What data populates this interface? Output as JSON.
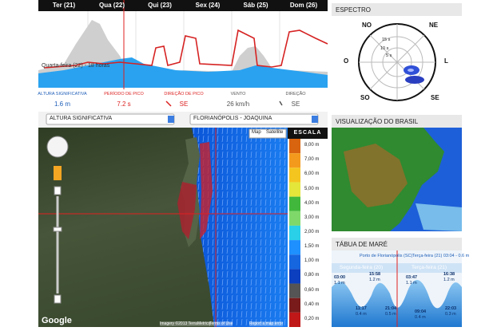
{
  "forecast": {
    "days": [
      "Ter (21)",
      "Qua (22)",
      "Qui (23)",
      "Sex (24)",
      "Sáb (25)",
      "Dom (26)"
    ],
    "cursor_label": "Quarta-feira (22) - 18 horas",
    "readouts": [
      {
        "label": "ALTURA SIGNIFICATIVA",
        "value": "1.6 m"
      },
      {
        "label": "PERÍODO DE PICO",
        "value": "7.2 s"
      },
      {
        "label": "DIREÇÃO DE PICO",
        "value": "SE"
      },
      {
        "label": "VENTO",
        "value": "26 km/h"
      },
      {
        "label": "DIREÇÃO",
        "value": "SE"
      }
    ]
  },
  "map": {
    "layer_select": "ALTURA SIGNIFICATIVA",
    "location_select": "FLORIANÓPOLIS - JOAQUINA",
    "map_button": "Map",
    "satellite_button": "Satellite",
    "logo": "Google",
    "attribution": [
      "Imagery ©2013 TerraMetrics",
      "Terms of Use",
      "Report a map error"
    ]
  },
  "scale": {
    "title": "ESCALA",
    "labels": [
      "8,00 m",
      "7,00 m",
      "6,00 m",
      "5,00 m",
      "4,00 m",
      "3,00 m",
      "2,00 m",
      "1,50 m",
      "1,00 m",
      "0,80 m",
      "0,60 m",
      "0,40 m",
      "0,20 m"
    ],
    "colors": [
      "#d9640f",
      "#f39a1c",
      "#f5c51f",
      "#e4e63a",
      "#41b83b",
      "#7fd96a",
      "#2ad0e8",
      "#1e90ff",
      "#1666e0",
      "#0b3fbf",
      "#555555",
      "#7a1b1b",
      "#c01818"
    ]
  },
  "spectrum": {
    "title": "ESPECTRO",
    "directions": [
      "NO",
      "NE",
      "O",
      "L",
      "SO",
      "SE"
    ],
    "rings": [
      "15 s",
      "10 s",
      "5 s"
    ]
  },
  "brazil": {
    "title": "VISUALIZAÇÃO DO BRASIL"
  },
  "tide": {
    "title": "TÁBUA DE MARÉ",
    "port": "Porto de Florianópolis (SC)",
    "selected": "Terça-feira (21) 03:04 - 0.6 m",
    "days": [
      "Segunda-feira (20)",
      "Terça-feira (21)"
    ],
    "events": [
      {
        "time": "03:00",
        "height": "1.1 m"
      },
      {
        "time": "11:17",
        "height": "0.4 m"
      },
      {
        "time": "15:58",
        "height": "1.2 m"
      },
      {
        "time": "21:04",
        "height": "0.5 m"
      },
      {
        "time": "03:47",
        "height": "1.1 m"
      },
      {
        "time": "09:04",
        "height": "0.4 m"
      },
      {
        "time": "16:38",
        "height": "1.2 m"
      },
      {
        "time": "22:03",
        "height": "0.3 m"
      }
    ]
  }
}
